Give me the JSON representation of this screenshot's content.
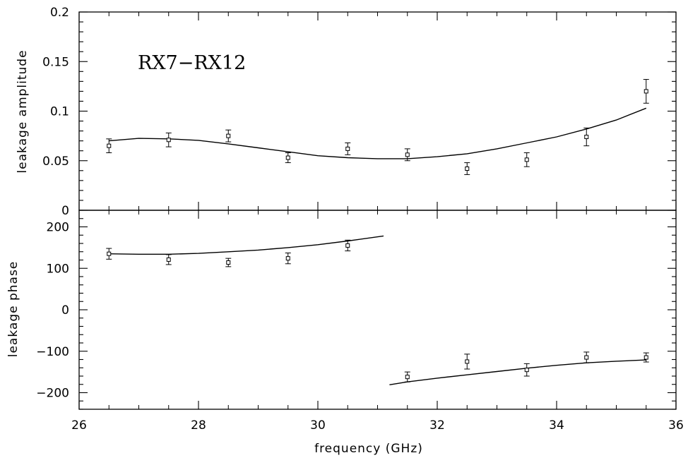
{
  "chart_data": [
    {
      "type": "scatter",
      "panel": "top",
      "annotation": "RX7−RX12",
      "ylabel": "leakage amplitude",
      "xlim": [
        26,
        36
      ],
      "ylim": [
        0,
        0.2
      ],
      "x_ticks": [
        26,
        28,
        30,
        32,
        34,
        36
      ],
      "y_tick_labels": [
        "0",
        "0.05",
        "0.1",
        "0.15",
        "0.2"
      ],
      "y_ticks": [
        0,
        0.05,
        0.1,
        0.15,
        0.2
      ],
      "points": {
        "x": [
          26.5,
          27.5,
          28.5,
          29.5,
          30.5,
          31.5,
          32.5,
          33.5,
          34.5,
          35.5
        ],
        "y": [
          0.065,
          0.071,
          0.075,
          0.053,
          0.062,
          0.056,
          0.042,
          0.051,
          0.074,
          0.12
        ],
        "err": [
          0.007,
          0.007,
          0.006,
          0.005,
          0.006,
          0.006,
          0.006,
          0.007,
          0.009,
          0.012
        ]
      },
      "model_curve": {
        "x": [
          26.5,
          27.0,
          27.5,
          28.0,
          28.5,
          29.0,
          29.5,
          30.0,
          30.5,
          31.0,
          31.5,
          32.0,
          32.5,
          33.0,
          33.5,
          34.0,
          34.5,
          35.0,
          35.5
        ],
        "y": [
          0.07,
          0.0725,
          0.072,
          0.0705,
          0.067,
          0.063,
          0.059,
          0.055,
          0.053,
          0.052,
          0.052,
          0.054,
          0.057,
          0.062,
          0.068,
          0.074,
          0.082,
          0.091,
          0.103
        ]
      }
    },
    {
      "type": "scatter",
      "panel": "bottom",
      "xlabel": "frequency (GHz)",
      "ylabel": "leakage phase",
      "xlim": [
        26,
        36
      ],
      "ylim": [
        -240,
        240
      ],
      "x_ticks": [
        26,
        28,
        30,
        32,
        34,
        36
      ],
      "x_tick_labels": [
        "26",
        "28",
        "30",
        "32",
        "34",
        "36"
      ],
      "y_ticks": [
        -200,
        -100,
        0,
        100,
        200
      ],
      "y_tick_labels": [
        "−200",
        "−100",
        "0",
        "100",
        "200"
      ],
      "points": {
        "x": [
          26.5,
          27.5,
          28.5,
          29.5,
          30.5,
          31.5,
          32.5,
          33.5,
          34.5,
          35.5
        ],
        "y": [
          135,
          121,
          114,
          124,
          155,
          -162,
          -125,
          -145,
          -115,
          -115
        ],
        "err": [
          13,
          12,
          10,
          13,
          13,
          12,
          18,
          15,
          13,
          11
        ]
      },
      "model_curves": [
        {
          "x": [
            26.5,
            27.0,
            27.5,
            28.0,
            28.5,
            29.0,
            29.5,
            30.0,
            30.5,
            31.1
          ],
          "y": [
            135,
            134,
            134,
            136,
            140,
            144,
            150,
            157,
            166,
            178
          ]
        },
        {
          "x": [
            31.2,
            31.5,
            32.0,
            32.5,
            33.0,
            33.5,
            34.0,
            34.5,
            35.0,
            35.5
          ],
          "y": [
            -181,
            -174,
            -165,
            -157,
            -149,
            -141,
            -134,
            -128,
            -124,
            -121
          ]
        }
      ]
    }
  ]
}
